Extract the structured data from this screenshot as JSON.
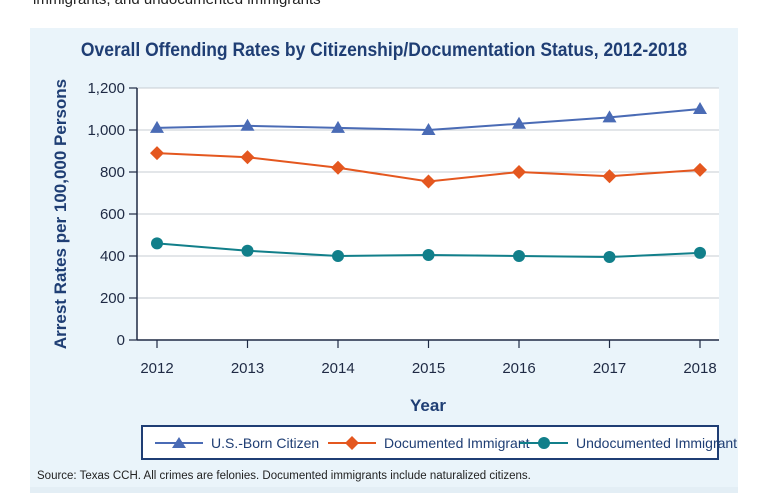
{
  "page": {
    "top_caption": "immigrants, and undocumented immigrants",
    "source_note": "Source: Texas CCH. All crimes are felonies. Documented immigrants include naturalized citizens."
  },
  "chart_data": {
    "type": "line",
    "title": "Overall Offending Rates by Citizenship/Documentation Status, 2012-2018",
    "xlabel": "Year",
    "ylabel": "Arrest Rates per 100,000 Persons",
    "x": [
      2012,
      2013,
      2014,
      2015,
      2016,
      2017,
      2018
    ],
    "x_tick_labels": [
      "2012",
      "2013",
      "2014",
      "2015",
      "2016",
      "2017",
      "2018"
    ],
    "ylim": [
      0,
      1200
    ],
    "y_ticks": [
      0,
      200,
      400,
      600,
      800,
      1000,
      1200
    ],
    "y_tick_labels": [
      "0",
      "200",
      "400",
      "600",
      "800",
      "1,000",
      "1,200"
    ],
    "grid": "horizontal",
    "legend_position": "bottom",
    "series": [
      {
        "name": "U.S.-Born Citizen",
        "marker": "triangle",
        "color": "#4a6bb5",
        "values": [
          1010,
          1020,
          1010,
          1000,
          1030,
          1060,
          1100
        ]
      },
      {
        "name": "Documented Immigrant",
        "marker": "diamond",
        "color": "#e4571f",
        "values": [
          890,
          870,
          820,
          755,
          800,
          780,
          810
        ]
      },
      {
        "name": "Undocumented Immigrant",
        "marker": "circle",
        "color": "#117f8a",
        "values": [
          460,
          425,
          400,
          405,
          400,
          395,
          415
        ]
      }
    ]
  }
}
